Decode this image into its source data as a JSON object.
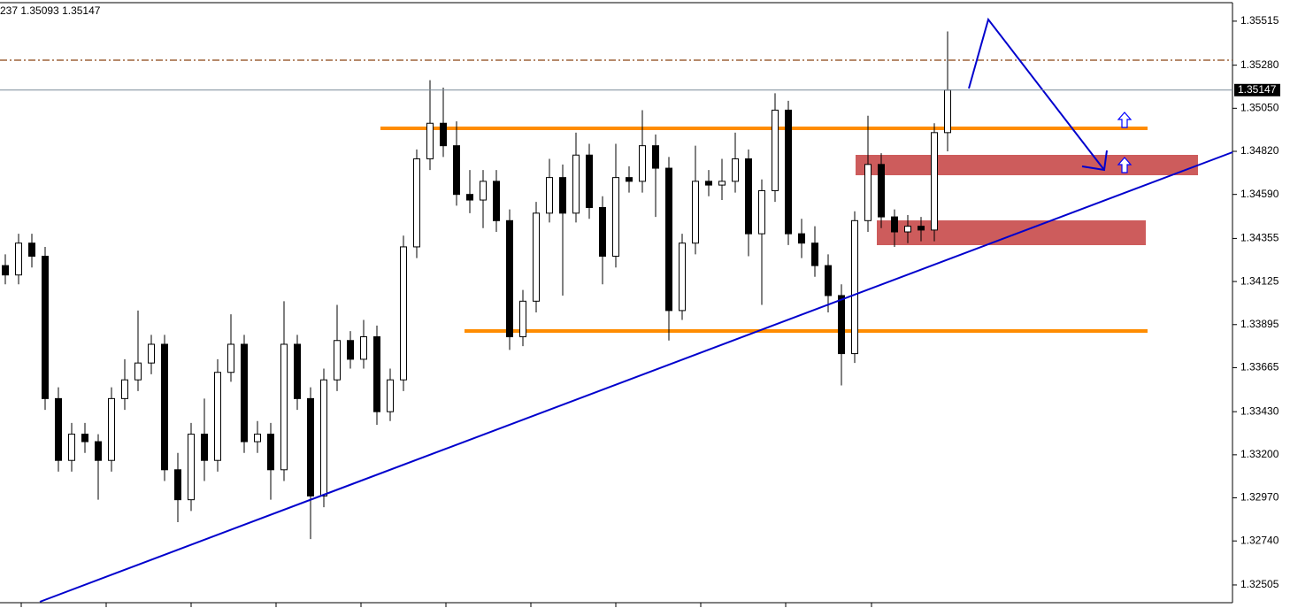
{
  "chart_data": {
    "type": "candlestick",
    "header": "237 1.35093 1.35147",
    "last_price": 1.35147,
    "ylim": [
      1.32415,
      1.35628
    ],
    "yticks": [
      1.35515,
      {
        "value": 1.3528,
        "label": "1.35280"
      },
      {
        "value": 1.3505,
        "label": "1.35050"
      },
      {
        "value": 1.3482,
        "label": "1.34820"
      },
      {
        "value": 1.3459,
        "label": "1.34590"
      },
      1.34355,
      {
        "value": 1.34125,
        "label": "1.34125"
      },
      {
        "value": 1.33895,
        "label": "1.33895"
      },
      1.33665,
      {
        "value": 1.3343,
        "label": "1.33430"
      },
      {
        "value": 1.332,
        "label": "1.33200"
      },
      {
        "value": 1.3297,
        "label": "1.32970"
      },
      {
        "value": 1.3274,
        "label": "1.32740"
      },
      1.32505
    ],
    "open": [
      1.3421,
      1.3416,
      1.3433,
      1.3426,
      1.335,
      1.3317,
      1.3331,
      1.3327,
      1.3317,
      1.335,
      1.336,
      1.3369,
      1.3379,
      1.3312,
      1.3296,
      1.3331,
      1.3317,
      1.3364,
      1.3379,
      1.3327,
      1.3331,
      1.3312,
      1.3379,
      1.335,
      1.3298,
      1.336,
      1.3381,
      1.3371,
      1.3383,
      1.3343,
      1.336,
      1.3431,
      1.3478,
      1.3497,
      1.3485,
      1.3459,
      1.3456,
      1.3466,
      1.3445,
      1.3383,
      1.3402,
      1.3449,
      1.3468,
      1.3449,
      1.348,
      1.3452,
      1.3426,
      1.3468,
      1.3466,
      1.3485,
      1.3473,
      1.3397,
      1.3433,
      1.3466,
      1.3464,
      1.3466,
      1.3478,
      1.3438,
      1.3461,
      1.3504,
      1.3438,
      1.3433,
      1.3421,
      1.3405,
      1.3374,
      1.3445,
      1.3475,
      1.3447,
      1.3439,
      1.3442,
      1.344,
      1.3492
    ],
    "high": [
      1.3427,
      1.3438,
      1.3438,
      1.3431,
      1.3356,
      1.3337,
      1.3337,
      1.3331,
      1.3356,
      1.3371,
      1.3397,
      1.3384,
      1.3384,
      1.3321,
      1.3337,
      1.335,
      1.3371,
      1.3395,
      1.3384,
      1.3338,
      1.3337,
      1.3402,
      1.3384,
      1.3356,
      1.3366,
      1.34,
      1.3386,
      1.3392,
      1.3389,
      1.3366,
      1.3437,
      1.3483,
      1.352,
      1.3516,
      1.3498,
      1.3472,
      1.3472,
      1.3472,
      1.3451,
      1.3408,
      1.3455,
      1.3478,
      1.3475,
      1.3492,
      1.3486,
      1.3458,
      1.3486,
      1.3474,
      1.3504,
      1.3491,
      1.3479,
      1.3438,
      1.3485,
      1.3472,
      1.3478,
      1.3492,
      1.3483,
      1.3467,
      1.3513,
      1.3509,
      1.3446,
      1.3442,
      1.3427,
      1.3411,
      1.345,
      1.3501,
      1.3481,
      1.3451,
      1.3448,
      1.3447,
      1.3497,
      1.3546
    ],
    "low": [
      1.3411,
      1.3411,
      1.342,
      1.3344,
      1.3311,
      1.3311,
      1.3321,
      1.3296,
      1.3311,
      1.3344,
      1.3354,
      1.3363,
      1.3306,
      1.3284,
      1.329,
      1.3306,
      1.3311,
      1.3359,
      1.3321,
      1.3321,
      1.3296,
      1.3306,
      1.3344,
      1.3275,
      1.3292,
      1.3354,
      1.3366,
      1.3366,
      1.3336,
      1.3338,
      1.3354,
      1.3425,
      1.3472,
      1.3479,
      1.3453,
      1.3449,
      1.3441,
      1.3439,
      1.3376,
      1.3378,
      1.3396,
      1.3444,
      1.3405,
      1.3444,
      1.3446,
      1.3411,
      1.342,
      1.346,
      1.346,
      1.3447,
      1.3381,
      1.3392,
      1.3427,
      1.3458,
      1.3456,
      1.346,
      1.3426,
      1.34,
      1.3455,
      1.3432,
      1.3425,
      1.3415,
      1.3396,
      1.3357,
      1.3369,
      1.3439,
      1.3441,
      1.3431,
      1.3433,
      1.3434,
      1.3434,
      1.3482
    ],
    "close": [
      1.3416,
      1.3433,
      1.3426,
      1.335,
      1.3317,
      1.3331,
      1.3327,
      1.3317,
      1.335,
      1.336,
      1.3369,
      1.3379,
      1.3312,
      1.3296,
      1.3331,
      1.3317,
      1.3364,
      1.3379,
      1.3327,
      1.3331,
      1.3312,
      1.3379,
      1.335,
      1.3298,
      1.336,
      1.3381,
      1.3371,
      1.3383,
      1.3343,
      1.336,
      1.3431,
      1.3478,
      1.3497,
      1.3485,
      1.3459,
      1.3456,
      1.3466,
      1.3445,
      1.3383,
      1.3402,
      1.3449,
      1.3468,
      1.3449,
      1.348,
      1.3452,
      1.3426,
      1.3468,
      1.3466,
      1.3485,
      1.3473,
      1.3397,
      1.3433,
      1.3466,
      1.3464,
      1.3466,
      1.3478,
      1.3438,
      1.3461,
      1.3504,
      1.3438,
      1.3433,
      1.3421,
      1.3405,
      1.3374,
      1.3445,
      1.3475,
      1.3447,
      1.3439,
      1.3442,
      1.344,
      1.3492,
      1.35147
    ]
  }
}
